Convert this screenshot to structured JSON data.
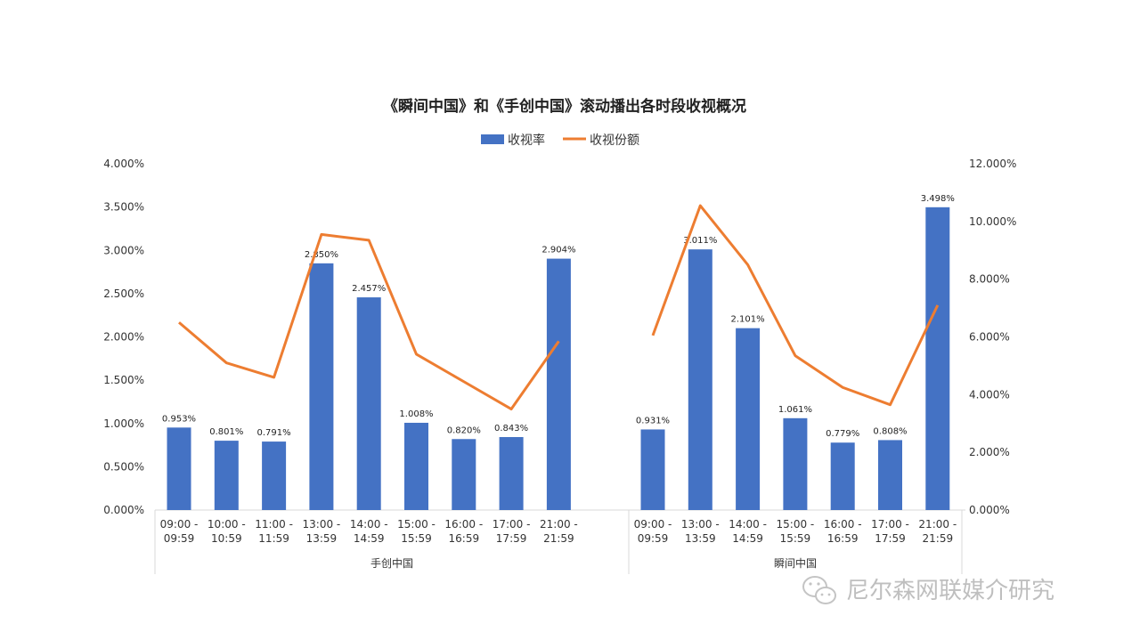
{
  "chart_data": {
    "type": "bar",
    "title": "《瞬间中国》和《手创中国》滚动播出各时段收视概况",
    "legend_placement": "top-center",
    "grid": false,
    "series": [
      {
        "name": "收视率",
        "type": "bar",
        "axis": "left",
        "color": "#4472C4"
      },
      {
        "name": "收视份额",
        "type": "line",
        "axis": "right",
        "color": "#ED7D31"
      }
    ],
    "left_axis": {
      "ylim": [
        0,
        4.0
      ],
      "ticks": [
        "0.000%",
        "0.500%",
        "1.000%",
        "1.500%",
        "2.000%",
        "2.500%",
        "3.000%",
        "3.500%",
        "4.000%"
      ]
    },
    "right_axis": {
      "ylim": [
        0,
        12.0
      ],
      "ticks": [
        "0.000%",
        "2.000%",
        "4.000%",
        "6.000%",
        "8.000%",
        "10.000%",
        "12.000%"
      ]
    },
    "groups": [
      {
        "name": "手创中国",
        "categories": [
          [
            "09:00 -",
            "09:59"
          ],
          [
            "10:00 -",
            "10:59"
          ],
          [
            "11:00 -",
            "11:59"
          ],
          [
            "13:00 -",
            "13:59"
          ],
          [
            "14:00 -",
            "14:59"
          ],
          [
            "15:00 -",
            "15:59"
          ],
          [
            "16:00 -",
            "16:59"
          ],
          [
            "17:00 -",
            "17:59"
          ],
          [
            "21:00 -",
            "21:59"
          ]
        ],
        "ratings": [
          0.953,
          0.801,
          0.791,
          2.85,
          2.457,
          1.008,
          0.82,
          0.843,
          2.904
        ],
        "rating_labels": [
          "0.953%",
          "0.801%",
          "0.791%",
          "2.850%",
          "2.457%",
          "1.008%",
          "0.820%",
          "0.843%",
          "2.904%"
        ],
        "share": [
          6.5,
          5.1,
          4.6,
          9.55,
          9.35,
          5.4,
          4.45,
          3.5,
          5.85
        ]
      },
      {
        "name": "瞬间中国",
        "categories": [
          [
            "09:00 -",
            "09:59"
          ],
          [
            "13:00 -",
            "13:59"
          ],
          [
            "14:00 -",
            "14:59"
          ],
          [
            "15:00 -",
            "15:59"
          ],
          [
            "16:00 -",
            "16:59"
          ],
          [
            "17:00 -",
            "17:59"
          ],
          [
            "21:00 -",
            "21:59"
          ]
        ],
        "ratings": [
          0.931,
          3.011,
          2.101,
          1.061,
          0.779,
          0.808,
          3.498
        ],
        "rating_labels": [
          "0.931%",
          "3.011%",
          "2.101%",
          "1.061%",
          "0.779%",
          "0.808%",
          "3.498%"
        ],
        "share": [
          6.05,
          10.55,
          8.5,
          5.35,
          4.25,
          3.65,
          7.1
        ]
      }
    ]
  },
  "watermark": {
    "text": "尼尔森网联媒介研究",
    "icon": "wechat-icon"
  }
}
